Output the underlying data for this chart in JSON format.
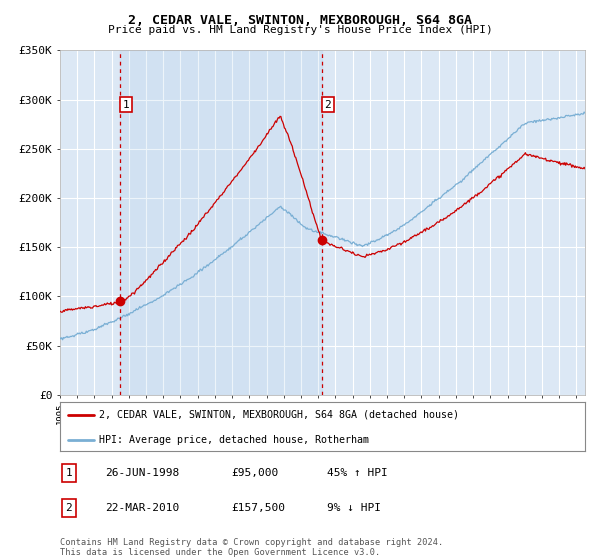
{
  "title": "2, CEDAR VALE, SWINTON, MEXBOROUGH, S64 8GA",
  "subtitle": "Price paid vs. HM Land Registry's House Price Index (HPI)",
  "legend_line1": "2, CEDAR VALE, SWINTON, MEXBOROUGH, S64 8GA (detached house)",
  "legend_line2": "HPI: Average price, detached house, Rotherham",
  "footnote": "Contains HM Land Registry data © Crown copyright and database right 2024.\nThis data is licensed under the Open Government Licence v3.0.",
  "sale1_label": "1",
  "sale1_date": "26-JUN-1998",
  "sale1_price": "£95,000",
  "sale1_hpi": "45% ↑ HPI",
  "sale1_year": 1998.48,
  "sale1_value": 95000,
  "sale2_label": "2",
  "sale2_date": "22-MAR-2010",
  "sale2_price": "£157,500",
  "sale2_hpi": "9% ↓ HPI",
  "sale2_year": 2010.22,
  "sale2_value": 157500,
  "xmin": 1995.0,
  "xmax": 2025.5,
  "ymin": 0,
  "ymax": 350000,
  "yticks": [
    0,
    50000,
    100000,
    150000,
    200000,
    250000,
    300000,
    350000
  ],
  "ytick_labels": [
    "£0",
    "£50K",
    "£100K",
    "£150K",
    "£200K",
    "£250K",
    "£300K",
    "£350K"
  ],
  "background_color": "#dce8f5",
  "grid_color": "#ffffff",
  "red_color": "#cc0000",
  "blue_color": "#7aafd4"
}
